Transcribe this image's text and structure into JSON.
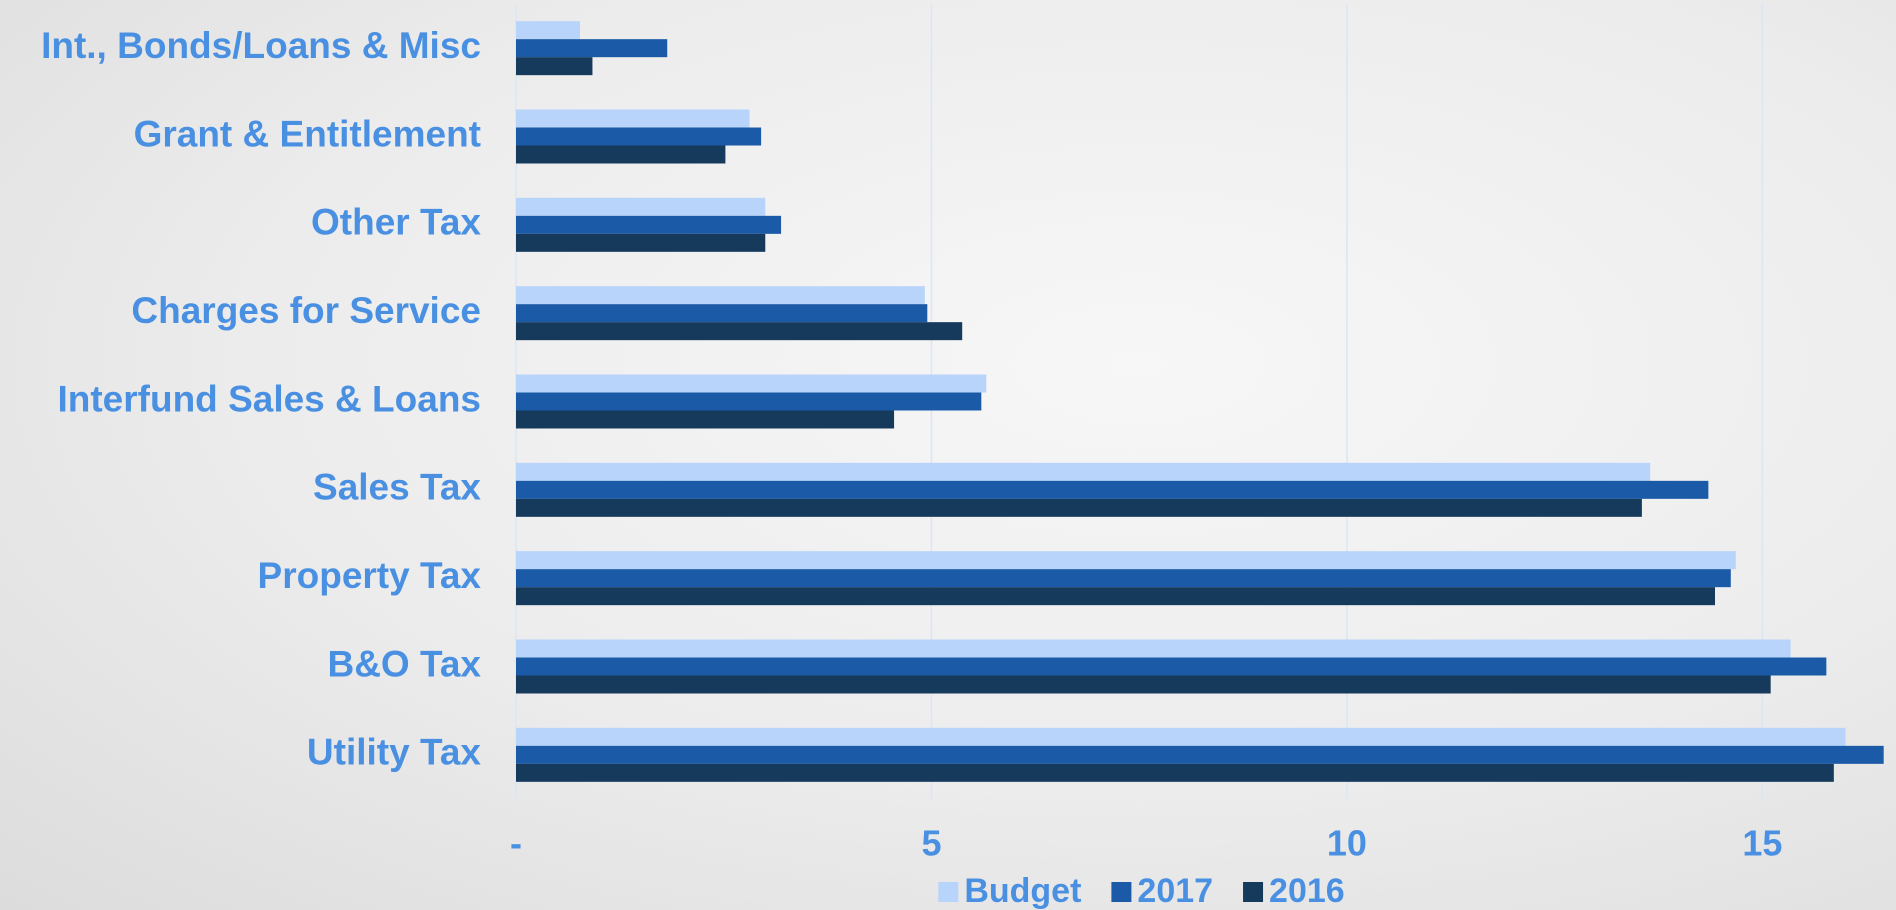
{
  "chart_data": {
    "type": "bar",
    "orientation": "horizontal",
    "categories": [
      "Int., Bonds/Loans & Misc",
      "Grant & Entitlement",
      "Other Tax",
      "Charges for Service",
      "Interfund Sales & Loans",
      "Sales Tax",
      "Property Tax",
      "B&O Tax",
      "Utility Tax"
    ],
    "series": [
      {
        "name": "Budget",
        "color": "#b8d4fa",
        "values": [
          0.77,
          2.81,
          3.0,
          4.92,
          5.66,
          13.65,
          14.68,
          15.34,
          16.0
        ]
      },
      {
        "name": "2017",
        "color": "#1a5aa6",
        "values": [
          1.82,
          2.95,
          3.19,
          4.95,
          5.6,
          14.35,
          14.62,
          15.77,
          16.46
        ]
      },
      {
        "name": "2016",
        "color": "#163a5c",
        "values": [
          0.92,
          2.52,
          3.0,
          5.37,
          4.55,
          13.55,
          14.43,
          15.1,
          15.86
        ]
      }
    ],
    "xlim": [
      0,
      16.5
    ],
    "xticks": [
      {
        "value": 0,
        "label": "-"
      },
      5,
      10,
      15
    ],
    "grid": true,
    "legend": "bottom"
  }
}
